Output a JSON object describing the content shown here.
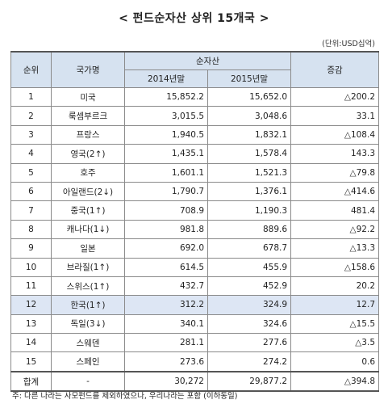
{
  "title": "< 펀드순자산 상위 15개국 >",
  "unit": "(단위:USD십억)",
  "headers": {
    "rank": "순위",
    "country": "국가명",
    "net_assets": "순자산",
    "y2014": "2014년말",
    "y2015": "2015년말",
    "change": "증감"
  },
  "rows": [
    {
      "rank": "1",
      "country": "미국",
      "y2014": "15,852.2",
      "y2015": "15,652.0",
      "change": "△200.2"
    },
    {
      "rank": "2",
      "country": "룩셈부르크",
      "y2014": "3,015.5",
      "y2015": "3,048.6",
      "change": "33.1"
    },
    {
      "rank": "3",
      "country": "프랑스",
      "y2014": "1,940.5",
      "y2015": "1,832.1",
      "change": "△108.4"
    },
    {
      "rank": "4",
      "country": "영국(2↑)",
      "y2014": "1,435.1",
      "y2015": "1,578.4",
      "change": "143.3"
    },
    {
      "rank": "5",
      "country": "호주",
      "y2014": "1,601.1",
      "y2015": "1,521.3",
      "change": "△79.8"
    },
    {
      "rank": "6",
      "country": "아일랜드(2↓)",
      "y2014": "1,790.7",
      "y2015": "1,376.1",
      "change": "△414.6"
    },
    {
      "rank": "7",
      "country": "중국(1↑)",
      "y2014": "708.9",
      "y2015": "1,190.3",
      "change": "481.4"
    },
    {
      "rank": "8",
      "country": "캐나다(1↓)",
      "y2014": "981.8",
      "y2015": "889.6",
      "change": "△92.2"
    },
    {
      "rank": "9",
      "country": "일본",
      "y2014": "692.0",
      "y2015": "678.7",
      "change": "△13.3"
    },
    {
      "rank": "10",
      "country": "브라질(1↑)",
      "y2014": "614.5",
      "y2015": "455.9",
      "change": "△158.6"
    },
    {
      "rank": "11",
      "country": "스위스(1↑)",
      "y2014": "432.7",
      "y2015": "452.9",
      "change": "20.2"
    },
    {
      "rank": "12",
      "country": "한국(1↑)",
      "y2014": "312.2",
      "y2015": "324.9",
      "change": "12.7"
    },
    {
      "rank": "13",
      "country": "독일(3↓)",
      "y2014": "340.1",
      "y2015": "324.6",
      "change": "△15.5"
    },
    {
      "rank": "14",
      "country": "스웨덴",
      "y2014": "281.1",
      "y2015": "277.6",
      "change": "△3.5"
    },
    {
      "rank": "15",
      "country": "스페인",
      "y2014": "273.6",
      "y2015": "274.2",
      "change": "0.6"
    }
  ],
  "total": {
    "label": "합계",
    "country": "-",
    "y2014": "30,272",
    "y2015": "29,877.2",
    "change": "△394.8"
  },
  "note": "주: 다른 나라는 사모펀드를 제외하였으나, 우리나라는 포함 (이하동일)",
  "highlight_color": "#dde6f4",
  "header_color": "#d6e2f0"
}
